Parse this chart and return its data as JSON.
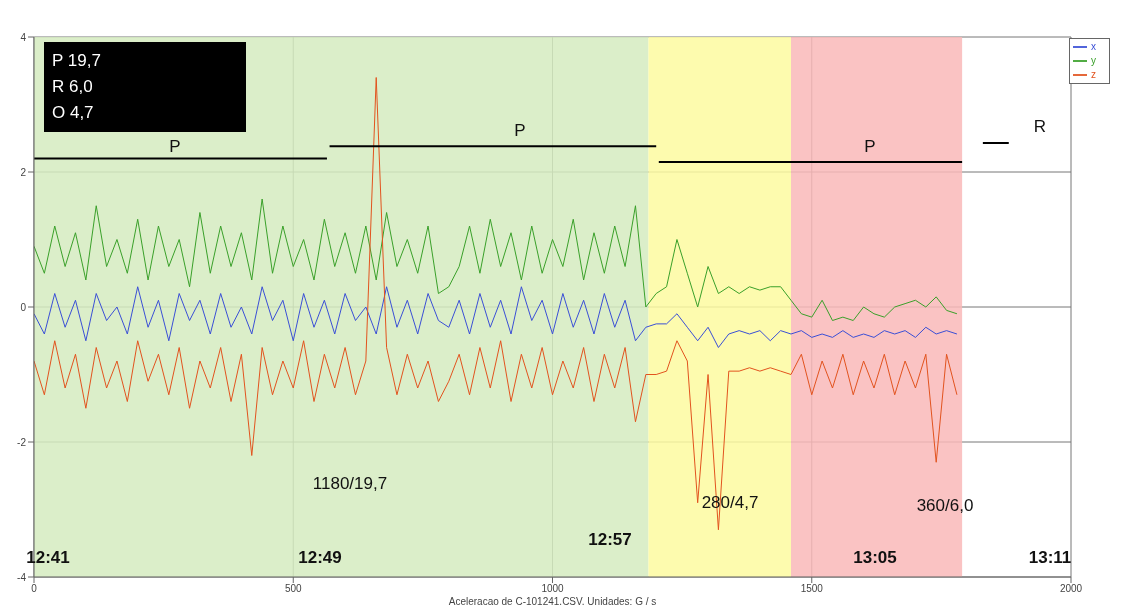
{
  "chart_data": {
    "type": "line",
    "xlabel": "Aceleracao de C-101241.CSV. Unidades: G / s",
    "x": [
      0,
      20,
      40,
      60,
      80,
      100,
      120,
      140,
      160,
      180,
      200,
      220,
      240,
      260,
      280,
      300,
      320,
      340,
      360,
      380,
      400,
      420,
      440,
      460,
      480,
      500,
      520,
      540,
      560,
      580,
      600,
      620,
      640,
      660,
      680,
      700,
      720,
      740,
      760,
      780,
      800,
      820,
      840,
      860,
      880,
      900,
      920,
      940,
      960,
      980,
      1000,
      1020,
      1040,
      1060,
      1080,
      1100,
      1120,
      1140,
      1160,
      1180,
      1200,
      1220,
      1240,
      1260,
      1280,
      1300,
      1320,
      1340,
      1360,
      1380,
      1400,
      1420,
      1440,
      1460,
      1480,
      1500,
      1520,
      1540,
      1560,
      1580,
      1600,
      1620,
      1640,
      1660,
      1680,
      1700,
      1720,
      1740,
      1760,
      1780
    ],
    "series": [
      {
        "name": "x",
        "color": "#3a4fd6",
        "values": [
          -0.1,
          -0.4,
          0.2,
          -0.3,
          0.1,
          -0.5,
          0.2,
          -0.2,
          0.0,
          -0.4,
          0.3,
          -0.3,
          0.1,
          -0.5,
          0.2,
          -0.2,
          0.1,
          -0.4,
          0.2,
          -0.3,
          0.0,
          -0.4,
          0.3,
          -0.2,
          0.1,
          -0.5,
          0.2,
          -0.3,
          0.1,
          -0.4,
          0.2,
          -0.2,
          0.0,
          -0.4,
          0.3,
          -0.3,
          0.1,
          -0.4,
          0.2,
          -0.2,
          -0.3,
          0.1,
          -0.4,
          0.2,
          -0.3,
          0.1,
          -0.4,
          0.3,
          -0.2,
          0.1,
          -0.4,
          0.2,
          -0.3,
          0.1,
          -0.4,
          0.2,
          -0.3,
          0.1,
          -0.5,
          -0.3,
          -0.25,
          -0.25,
          -0.1,
          -0.3,
          -0.5,
          -0.3,
          -0.6,
          -0.4,
          -0.35,
          -0.4,
          -0.35,
          -0.5,
          -0.35,
          -0.4,
          -0.35,
          -0.45,
          -0.4,
          -0.45,
          -0.35,
          -0.45,
          -0.4,
          -0.45,
          -0.35,
          -0.4,
          -0.35,
          -0.45,
          -0.3,
          -0.4,
          -0.35,
          -0.4
        ]
      },
      {
        "name": "y",
        "color": "#3aa02a",
        "values": [
          0.9,
          0.5,
          1.2,
          0.6,
          1.1,
          0.4,
          1.5,
          0.6,
          1.0,
          0.5,
          1.3,
          0.4,
          1.2,
          0.6,
          1.0,
          0.3,
          1.4,
          0.5,
          1.2,
          0.6,
          1.1,
          0.4,
          1.6,
          0.5,
          1.2,
          0.6,
          1.0,
          0.4,
          1.3,
          0.6,
          1.1,
          0.5,
          1.2,
          0.4,
          1.4,
          0.6,
          1.0,
          0.5,
          1.2,
          0.2,
          0.3,
          0.6,
          1.2,
          0.5,
          1.3,
          0.6,
          1.1,
          0.4,
          1.2,
          0.5,
          1.0,
          0.6,
          1.3,
          0.4,
          1.1,
          0.5,
          1.2,
          0.6,
          1.5,
          0.0,
          0.2,
          0.3,
          1.0,
          0.5,
          0.0,
          0.6,
          0.2,
          0.3,
          0.2,
          0.3,
          0.25,
          0.3,
          0.3,
          0.1,
          -0.1,
          -0.15,
          0.1,
          -0.2,
          -0.15,
          -0.2,
          0.0,
          -0.1,
          -0.15,
          0.0,
          0.05,
          0.1,
          0.0,
          0.15,
          -0.05,
          -0.1
        ]
      },
      {
        "name": "z",
        "color": "#e2531e",
        "values": [
          -0.8,
          -1.3,
          -0.5,
          -1.2,
          -0.7,
          -1.5,
          -0.6,
          -1.2,
          -0.8,
          -1.4,
          -0.5,
          -1.1,
          -0.7,
          -1.3,
          -0.6,
          -1.5,
          -0.8,
          -1.2,
          -0.6,
          -1.4,
          -0.7,
          -2.2,
          -0.6,
          -1.3,
          -0.8,
          -1.2,
          -0.5,
          -1.4,
          -0.7,
          -1.2,
          -0.6,
          -1.3,
          -0.8,
          3.4,
          -0.6,
          -1.3,
          -0.7,
          -1.2,
          -0.8,
          -1.4,
          -1.1,
          -0.7,
          -1.3,
          -0.6,
          -1.2,
          -0.5,
          -1.4,
          -0.7,
          -1.2,
          -0.6,
          -1.3,
          -0.8,
          -1.2,
          -0.6,
          -1.4,
          -0.7,
          -1.2,
          -0.6,
          -1.7,
          -1.0,
          -1.0,
          -0.95,
          -0.5,
          -0.8,
          -2.9,
          -1.0,
          -3.3,
          -0.95,
          -0.95,
          -0.9,
          -0.95,
          -0.9,
          -0.95,
          -1.0,
          -0.7,
          -1.3,
          -0.8,
          -1.2,
          -0.7,
          -1.3,
          -0.8,
          -1.2,
          -0.7,
          -1.3,
          -0.8,
          -1.2,
          -0.7,
          -2.3,
          -0.7,
          -1.3
        ]
      },
      {
        "type": "line",
        "color": "#000000",
        "x": [
          0,
          565
        ],
        "values": [
          2.2,
          2.2
        ]
      },
      {
        "type": "line",
        "color": "#000000",
        "x": [
          570,
          1200
        ],
        "values": [
          2.38,
          2.38
        ]
      },
      {
        "type": "line",
        "color": "#000000",
        "x": [
          1205,
          1790
        ],
        "values": [
          2.15,
          2.15
        ]
      },
      {
        "type": "line",
        "color": "#000000",
        "x": [
          1830,
          1880
        ],
        "values": [
          2.43,
          2.43
        ]
      }
    ],
    "bands": [
      {
        "axis": "x",
        "from": 0,
        "to": 1185,
        "color": "#d5ebc0"
      },
      {
        "axis": "x",
        "from": 1185,
        "to": 1460,
        "color": "#fdfaa0"
      },
      {
        "axis": "x",
        "from": 1460,
        "to": 1790,
        "color": "#f9b8b8"
      }
    ],
    "annotations": [
      "P 19,7",
      "R 6,0",
      "O 4,7",
      "P",
      "P",
      "P",
      "R",
      "1180/19,7",
      "280/4,7",
      "360/6,0",
      "12:41",
      "12:49",
      "12:57",
      "13:05",
      "13:11"
    ],
    "xlim": [
      0,
      2000
    ],
    "xticks": [
      0,
      500,
      1000,
      1500,
      2000
    ],
    "ylim": [
      -4,
      4
    ],
    "yticks": [
      -4,
      -2,
      0,
      2,
      4
    ],
    "grid": true,
    "legend": "top right"
  }
}
